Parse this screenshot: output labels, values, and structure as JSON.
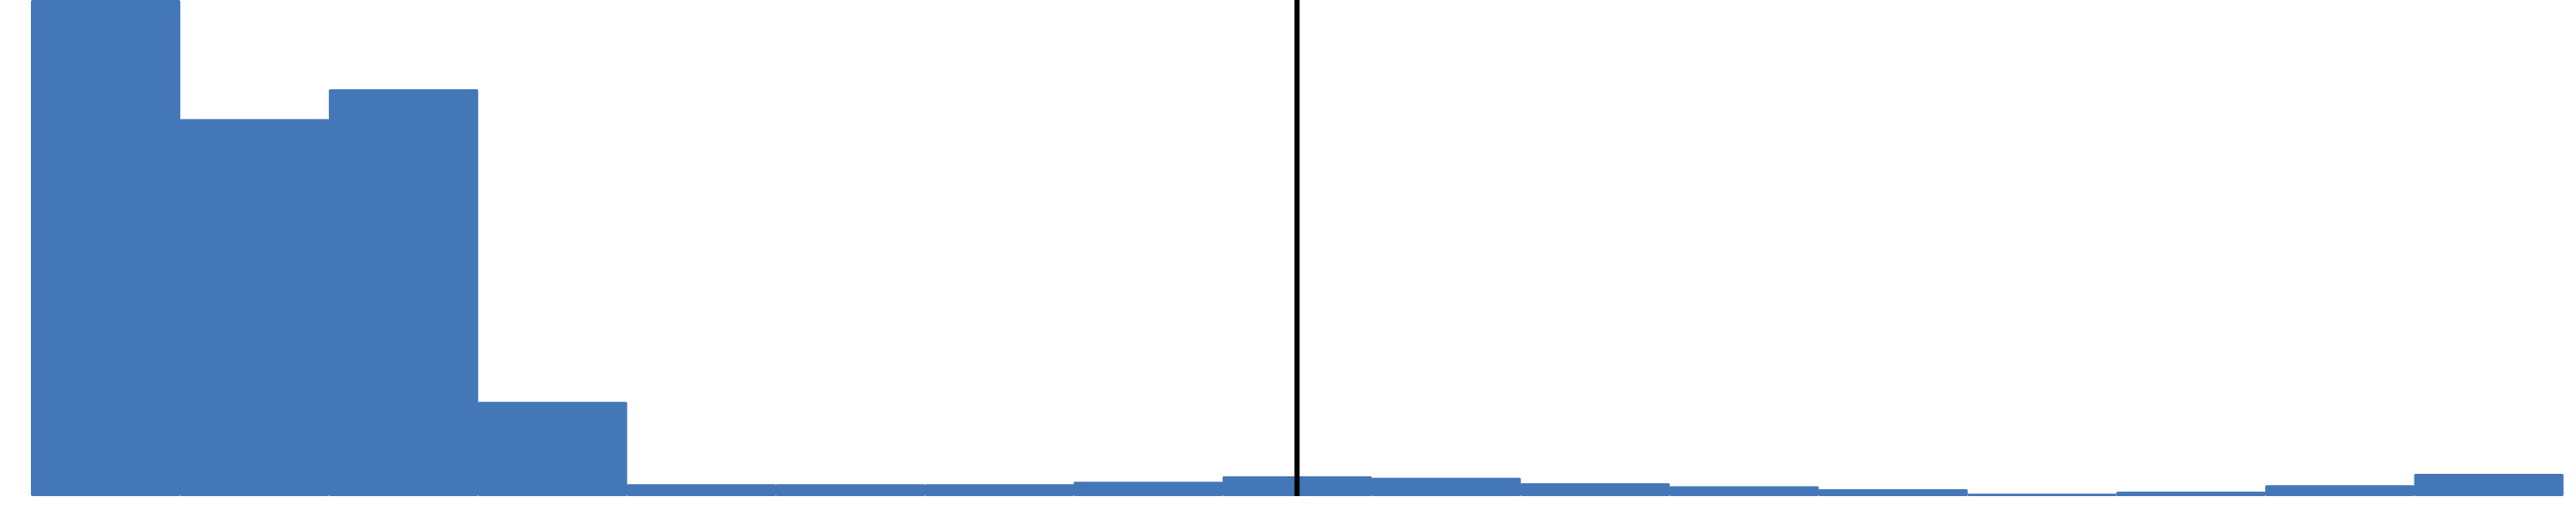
{
  "chart_data": {
    "type": "bar",
    "title": "",
    "xlabel": "",
    "ylabel": "",
    "bar_color": "#4477b7",
    "marker_color": "#000000",
    "bin_count": 17,
    "values": [
      100,
      76,
      82,
      19,
      2.4,
      2.4,
      2.4,
      2.9,
      4.0,
      3.7,
      2.6,
      2.0,
      1.4,
      0.5,
      0.9,
      2.2,
      4.5
    ],
    "ylim": [
      0,
      100
    ],
    "marker_bin_position": 8.5,
    "grid": false,
    "legend": "none"
  }
}
